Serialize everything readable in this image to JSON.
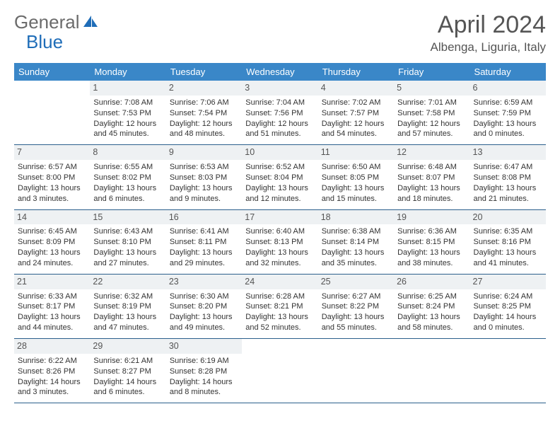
{
  "logo": {
    "text1": "General",
    "text2": "Blue"
  },
  "title": "April 2024",
  "location": "Albenga, Liguria, Italy",
  "colors": {
    "header_bg": "#3a87c8",
    "header_text": "#ffffff",
    "daynum_bg": "#eef1f3",
    "daynum_text": "#555555",
    "border": "#2b5f8c",
    "body_text": "#333333",
    "title_text": "#555555",
    "logo_gray": "#6b6b6b",
    "logo_blue": "#1f6db8",
    "page_bg": "#ffffff"
  },
  "dow": [
    "Sunday",
    "Monday",
    "Tuesday",
    "Wednesday",
    "Thursday",
    "Friday",
    "Saturday"
  ],
  "weeks": [
    [
      {
        "num": "",
        "empty": true
      },
      {
        "num": "1",
        "sunrise": "7:08 AM",
        "sunset": "7:53 PM",
        "daylight": "12 hours and 45 minutes."
      },
      {
        "num": "2",
        "sunrise": "7:06 AM",
        "sunset": "7:54 PM",
        "daylight": "12 hours and 48 minutes."
      },
      {
        "num": "3",
        "sunrise": "7:04 AM",
        "sunset": "7:56 PM",
        "daylight": "12 hours and 51 minutes."
      },
      {
        "num": "4",
        "sunrise": "7:02 AM",
        "sunset": "7:57 PM",
        "daylight": "12 hours and 54 minutes."
      },
      {
        "num": "5",
        "sunrise": "7:01 AM",
        "sunset": "7:58 PM",
        "daylight": "12 hours and 57 minutes."
      },
      {
        "num": "6",
        "sunrise": "6:59 AM",
        "sunset": "7:59 PM",
        "daylight": "13 hours and 0 minutes."
      }
    ],
    [
      {
        "num": "7",
        "sunrise": "6:57 AM",
        "sunset": "8:00 PM",
        "daylight": "13 hours and 3 minutes."
      },
      {
        "num": "8",
        "sunrise": "6:55 AM",
        "sunset": "8:02 PM",
        "daylight": "13 hours and 6 minutes."
      },
      {
        "num": "9",
        "sunrise": "6:53 AM",
        "sunset": "8:03 PM",
        "daylight": "13 hours and 9 minutes."
      },
      {
        "num": "10",
        "sunrise": "6:52 AM",
        "sunset": "8:04 PM",
        "daylight": "13 hours and 12 minutes."
      },
      {
        "num": "11",
        "sunrise": "6:50 AM",
        "sunset": "8:05 PM",
        "daylight": "13 hours and 15 minutes."
      },
      {
        "num": "12",
        "sunrise": "6:48 AM",
        "sunset": "8:07 PM",
        "daylight": "13 hours and 18 minutes."
      },
      {
        "num": "13",
        "sunrise": "6:47 AM",
        "sunset": "8:08 PM",
        "daylight": "13 hours and 21 minutes."
      }
    ],
    [
      {
        "num": "14",
        "sunrise": "6:45 AM",
        "sunset": "8:09 PM",
        "daylight": "13 hours and 24 minutes."
      },
      {
        "num": "15",
        "sunrise": "6:43 AM",
        "sunset": "8:10 PM",
        "daylight": "13 hours and 27 minutes."
      },
      {
        "num": "16",
        "sunrise": "6:41 AM",
        "sunset": "8:11 PM",
        "daylight": "13 hours and 29 minutes."
      },
      {
        "num": "17",
        "sunrise": "6:40 AM",
        "sunset": "8:13 PM",
        "daylight": "13 hours and 32 minutes."
      },
      {
        "num": "18",
        "sunrise": "6:38 AM",
        "sunset": "8:14 PM",
        "daylight": "13 hours and 35 minutes."
      },
      {
        "num": "19",
        "sunrise": "6:36 AM",
        "sunset": "8:15 PM",
        "daylight": "13 hours and 38 minutes."
      },
      {
        "num": "20",
        "sunrise": "6:35 AM",
        "sunset": "8:16 PM",
        "daylight": "13 hours and 41 minutes."
      }
    ],
    [
      {
        "num": "21",
        "sunrise": "6:33 AM",
        "sunset": "8:17 PM",
        "daylight": "13 hours and 44 minutes."
      },
      {
        "num": "22",
        "sunrise": "6:32 AM",
        "sunset": "8:19 PM",
        "daylight": "13 hours and 47 minutes."
      },
      {
        "num": "23",
        "sunrise": "6:30 AM",
        "sunset": "8:20 PM",
        "daylight": "13 hours and 49 minutes."
      },
      {
        "num": "24",
        "sunrise": "6:28 AM",
        "sunset": "8:21 PM",
        "daylight": "13 hours and 52 minutes."
      },
      {
        "num": "25",
        "sunrise": "6:27 AM",
        "sunset": "8:22 PM",
        "daylight": "13 hours and 55 minutes."
      },
      {
        "num": "26",
        "sunrise": "6:25 AM",
        "sunset": "8:24 PM",
        "daylight": "13 hours and 58 minutes."
      },
      {
        "num": "27",
        "sunrise": "6:24 AM",
        "sunset": "8:25 PM",
        "daylight": "14 hours and 0 minutes."
      }
    ],
    [
      {
        "num": "28",
        "sunrise": "6:22 AM",
        "sunset": "8:26 PM",
        "daylight": "14 hours and 3 minutes."
      },
      {
        "num": "29",
        "sunrise": "6:21 AM",
        "sunset": "8:27 PM",
        "daylight": "14 hours and 6 minutes."
      },
      {
        "num": "30",
        "sunrise": "6:19 AM",
        "sunset": "8:28 PM",
        "daylight": "14 hours and 8 minutes."
      },
      {
        "num": "",
        "empty": true
      },
      {
        "num": "",
        "empty": true
      },
      {
        "num": "",
        "empty": true
      },
      {
        "num": "",
        "empty": true
      }
    ]
  ]
}
